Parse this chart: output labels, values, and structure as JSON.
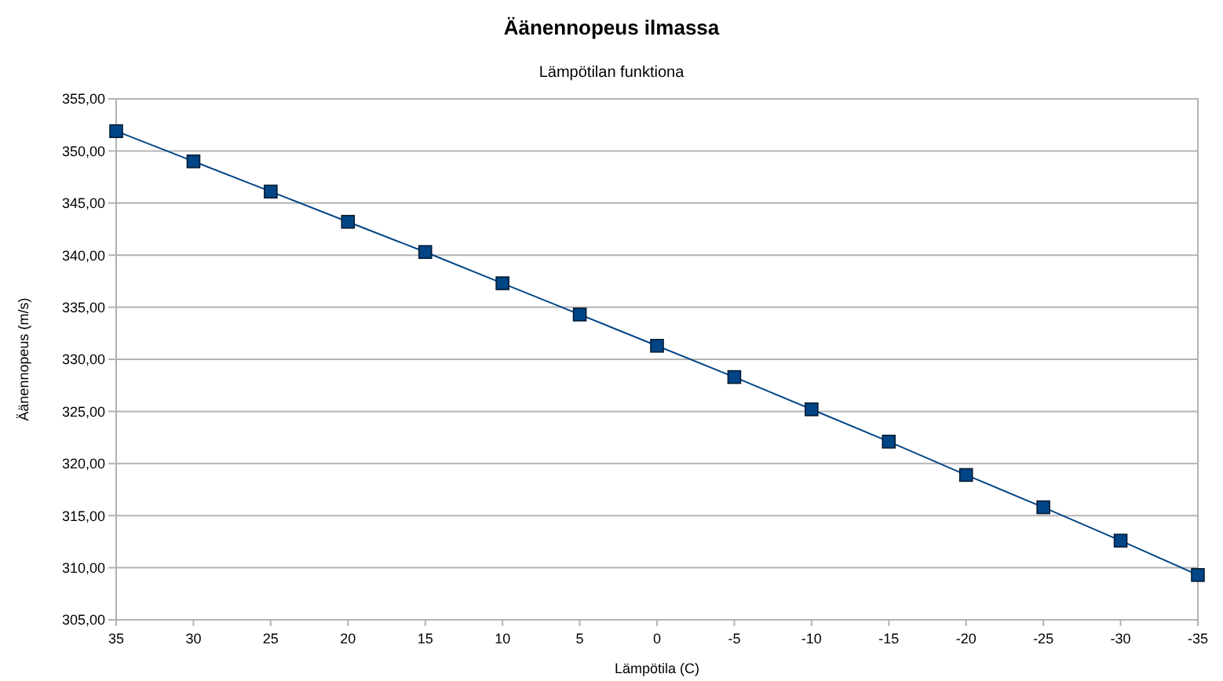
{
  "chart_data": {
    "type": "line",
    "title": "Äänennopeus ilmassa",
    "subtitle": "Lämpötilan funktiona",
    "xlabel": "Lämpötila (C)",
    "ylabel": "Äänennopeus (m/s)",
    "categories": [
      "35",
      "30",
      "25",
      "20",
      "15",
      "10",
      "5",
      "0",
      "-5",
      "-10",
      "-15",
      "-20",
      "-25",
      "-30",
      "-35"
    ],
    "series": [
      {
        "color": "#004586",
        "values": [
          351.9,
          349.0,
          346.1,
          343.2,
          340.3,
          337.3,
          334.3,
          331.3,
          328.3,
          325.2,
          322.1,
          318.9,
          315.8,
          312.6,
          309.3
        ]
      }
    ],
    "ylim": [
      305,
      355
    ],
    "yticks": [
      {
        "value": 305,
        "label": "305,00"
      },
      {
        "value": 310,
        "label": "310,00"
      },
      {
        "value": 315,
        "label": "315,00"
      },
      {
        "value": 320,
        "label": "320,00"
      },
      {
        "value": 325,
        "label": "325,00"
      },
      {
        "value": 330,
        "label": "330,00"
      },
      {
        "value": 335,
        "label": "335,00"
      },
      {
        "value": 340,
        "label": "340,00"
      },
      {
        "value": 345,
        "label": "345,00"
      },
      {
        "value": 350,
        "label": "350,00"
      },
      {
        "value": 355,
        "label": "355,00"
      }
    ],
    "grid": "y",
    "marker": "square",
    "line_style": "solid"
  }
}
